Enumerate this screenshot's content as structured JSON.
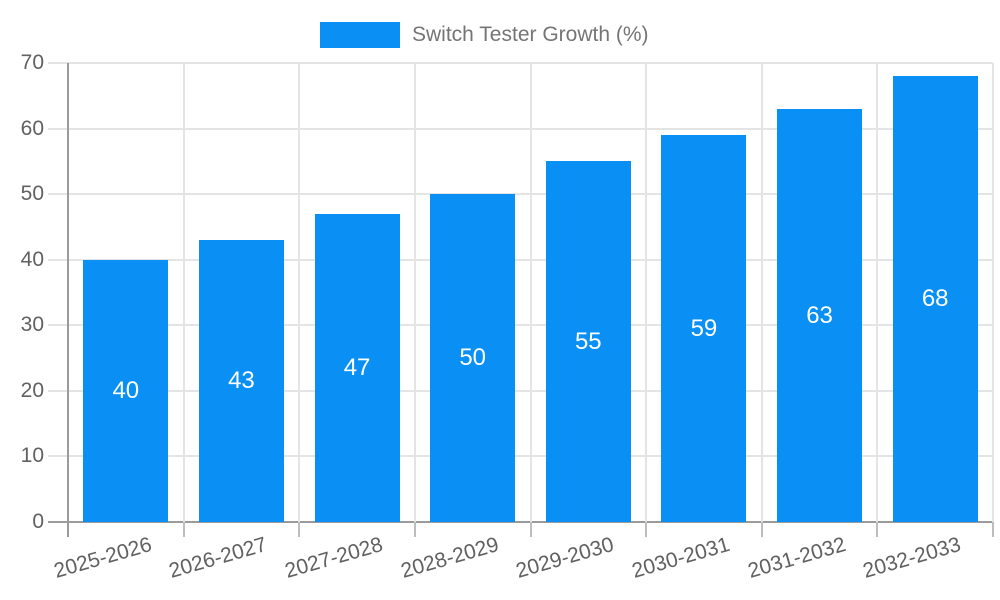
{
  "chart_data": {
    "type": "bar",
    "title": "",
    "series_name": "Switch Tester Growth (%)",
    "categories": [
      "2025-2026",
      "2026-2027",
      "2027-2028",
      "2028-2029",
      "2029-2030",
      "2030-2031",
      "2031-2032",
      "2032-2033"
    ],
    "values": [
      40,
      43,
      47,
      50,
      55,
      59,
      63,
      68
    ],
    "xlabel": "",
    "ylabel": "",
    "ylim": [
      0,
      70
    ],
    "yticks": [
      0,
      10,
      20,
      30,
      40,
      50,
      60,
      70
    ],
    "grid": true,
    "legend_position": "top-center",
    "value_labels": "centered-inside-bars",
    "colors": {
      "bar": "#0a90f5",
      "value_label": "#ffffff",
      "axis_text": "#616161",
      "legend_text": "#757575",
      "grid_line": "#e4e4e4",
      "axis_line": "#9b9b9b",
      "tick": "#bdbdbd",
      "background": "#ffffff"
    }
  }
}
